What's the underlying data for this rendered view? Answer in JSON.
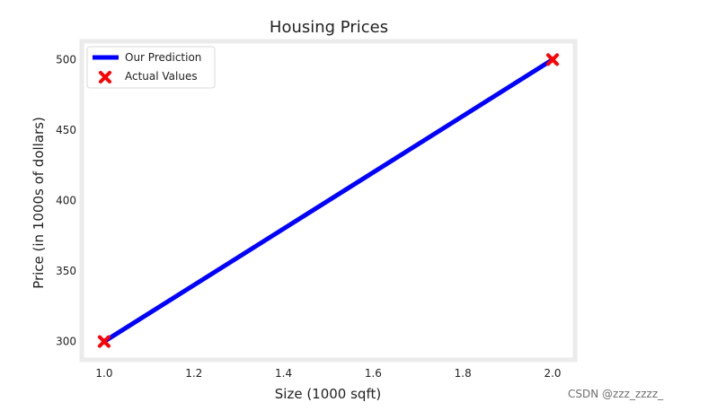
{
  "chart_data": {
    "type": "line",
    "title": "Housing Prices",
    "xlabel": "Size (1000 sqft)",
    "ylabel": "Price (in 1000s of dollars)",
    "xlim": [
      0.95,
      2.05
    ],
    "ylim": [
      287,
      513
    ],
    "xticks": [
      "1.0",
      "1.2",
      "1.4",
      "1.6",
      "1.8",
      "2.0"
    ],
    "yticks": [
      "300",
      "350",
      "400",
      "450",
      "500"
    ],
    "grid": false,
    "legend_position": "upper-left",
    "series": [
      {
        "name": "Our Prediction",
        "kind": "line",
        "color": "#0000ff",
        "x": [
          1.0,
          2.0
        ],
        "y": [
          300,
          500
        ]
      },
      {
        "name": "Actual Values",
        "kind": "scatter",
        "marker": "x",
        "color": "#ff0000",
        "x": [
          1.0,
          2.0
        ],
        "y": [
          300,
          500
        ]
      }
    ]
  },
  "watermark": "CSDN @zzz_zzzz_"
}
